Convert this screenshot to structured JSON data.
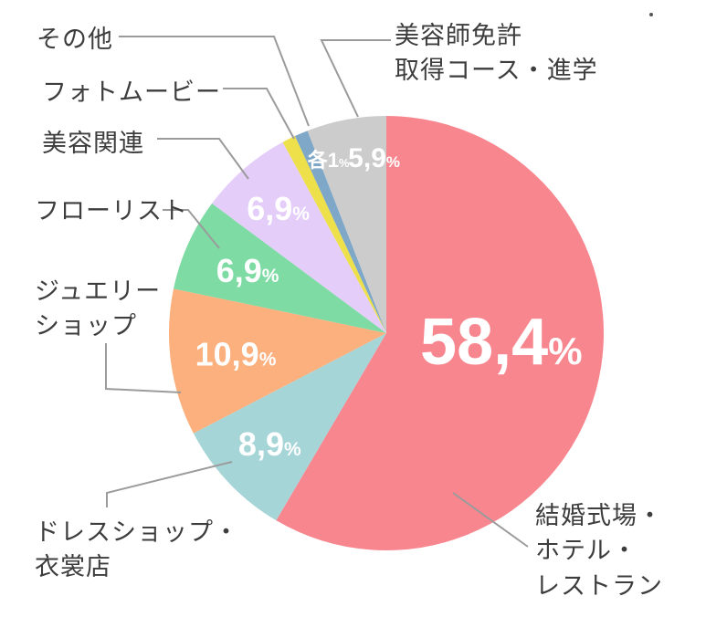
{
  "chart_data": {
    "type": "pie",
    "title": "",
    "legend_position": "callouts",
    "start_angle_deg": 0,
    "direction": "clockwise",
    "segments": [
      {
        "label": "結婚式場・ホテル・レストラン",
        "value": 58.4,
        "display": "58,4%",
        "color": "#f8868f",
        "pct_label": {
          "angle_deg": 94,
          "r": 0.53,
          "size": 72
        }
      },
      {
        "label": "ドレスショップ・衣裳店",
        "value": 8.9,
        "display": "8,9%",
        "color": "#a6d5d8",
        "pct_label": {
          "r": 0.74,
          "size": 36
        }
      },
      {
        "label": "ジュエリーショップ",
        "value": 10.9,
        "display": "10,9%",
        "color": "#fbb07e",
        "pct_label": {
          "r": 0.7,
          "size": 36
        }
      },
      {
        "label": "フローリスト",
        "value": 6.9,
        "display": "6,9%",
        "color": "#7edba4",
        "pct_label": {
          "r": 0.7,
          "size": 36
        }
      },
      {
        "label": "美容関連",
        "value": 6.9,
        "display": "6,9%",
        "color": "#e4cdf9",
        "pct_label": {
          "r": 0.76,
          "size": 36
        }
      },
      {
        "label": "フォトムービー",
        "value": 1.0,
        "display": "各1%",
        "color": "#eee04a",
        "pct_label": {
          "angle_deg": 341.5,
          "r": 0.84,
          "size": 22
        }
      },
      {
        "label": "その他",
        "value": 1.0,
        "display": "",
        "color": "#7fa7c7"
      },
      {
        "label": "美容師免許取得コース・進学",
        "value": 5.9,
        "display": "5,9%",
        "color": "#cccccc",
        "pct_label": {
          "angle_deg": 356,
          "r": 0.81,
          "size": 30
        }
      }
    ]
  },
  "callouts": {
    "sonota": "その他",
    "photo_movie": "フォトムービー",
    "biyou_kanren": "美容関連",
    "florist": "フローリスト",
    "jewelry_shop": "ジュエリー\nショップ",
    "dress_shop": "ドレスショップ・\n衣裳店",
    "biyoushi_menkyo": "美容師免許\n取得コース・進学",
    "wedding_venue": "結婚式場・\nホテル・\nレストラン"
  },
  "colors": {
    "leader_line": "#9b9b9b",
    "pct_text": "#ffffff",
    "callout_text": "#3d3d3d"
  }
}
